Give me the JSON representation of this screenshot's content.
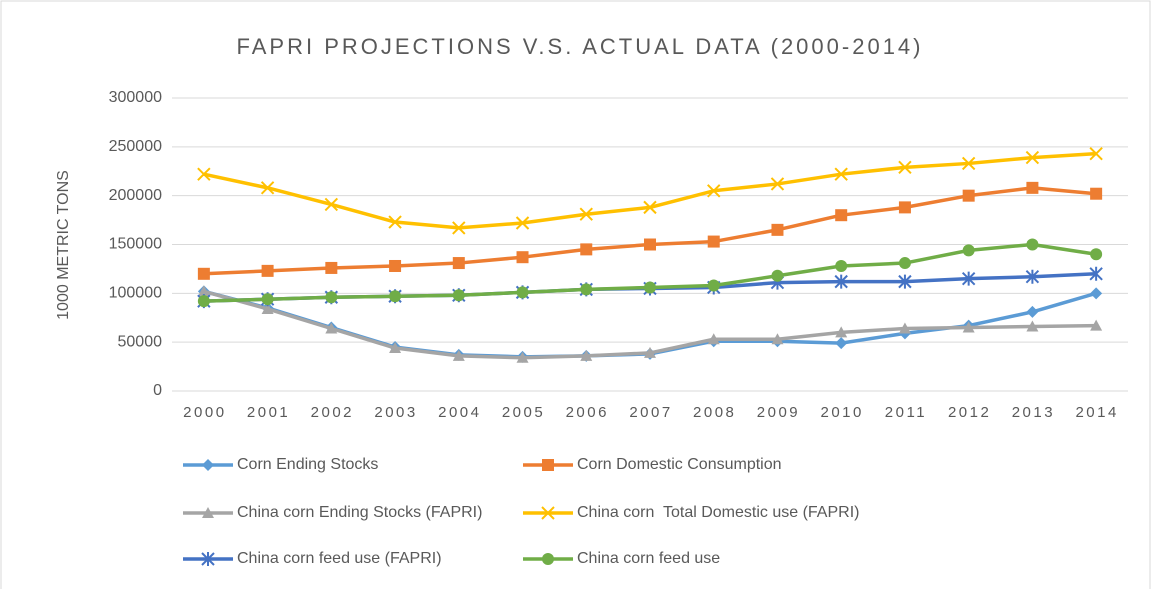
{
  "chart_data": {
    "type": "line",
    "title": "FAPRI PROJECTIONS V.S. ACTUAL DATA (2000-2014)",
    "y_label": "1000 METRIC TONS",
    "categories": [
      "2000",
      "2001",
      "2002",
      "2003",
      "2004",
      "2005",
      "2006",
      "2007",
      "2008",
      "2009",
      "2010",
      "2011",
      "2012",
      "2013",
      "2014"
    ],
    "ylim": [
      0,
      300000
    ],
    "yticks": [
      0,
      50000,
      100000,
      150000,
      200000,
      250000,
      300000
    ],
    "grid": true,
    "legend": "bottom",
    "series": [
      {
        "name": "Corn Ending Stocks",
        "color": "#5b9bd5",
        "marker": "diamond",
        "values": [
          102000,
          85000,
          65000,
          45000,
          37000,
          35000,
          36000,
          38000,
          51000,
          51000,
          49000,
          59000,
          67000,
          81000,
          100000
        ]
      },
      {
        "name": "Corn Domestic Consumption",
        "color": "#ed7d31",
        "marker": "square",
        "values": [
          120000,
          123000,
          126000,
          128000,
          131000,
          137000,
          145000,
          150000,
          153000,
          165000,
          180000,
          188000,
          200000,
          208000,
          202000
        ]
      },
      {
        "name": "China corn Ending Stocks (FAPRI)",
        "color": "#a5a5a5",
        "marker": "triangle",
        "values": [
          102000,
          84000,
          64000,
          44000,
          36000,
          34000,
          36000,
          39000,
          53000,
          53000,
          60000,
          64000,
          65000,
          66000,
          67000
        ]
      },
      {
        "name": "China corn  Total Domestic use (FAPRI)",
        "color": "#ffc000",
        "marker": "x",
        "values": [
          222000,
          208000,
          191000,
          173000,
          167000,
          172000,
          181000,
          188000,
          205000,
          212000,
          222000,
          229000,
          233000,
          239000,
          243000
        ]
      },
      {
        "name": "China corn feed use (FAPRI)",
        "color": "#4472c4",
        "marker": "star",
        "values": [
          92000,
          94000,
          96000,
          97000,
          98000,
          101000,
          104000,
          105000,
          106000,
          111000,
          112000,
          112000,
          115000,
          117000,
          120000
        ]
      },
      {
        "name": "China corn feed use",
        "color": "#70ad47",
        "marker": "circle",
        "values": [
          92000,
          94000,
          96000,
          97000,
          98000,
          101000,
          104000,
          106000,
          108000,
          118000,
          128000,
          131000,
          144000,
          150000,
          140000
        ]
      }
    ]
  }
}
